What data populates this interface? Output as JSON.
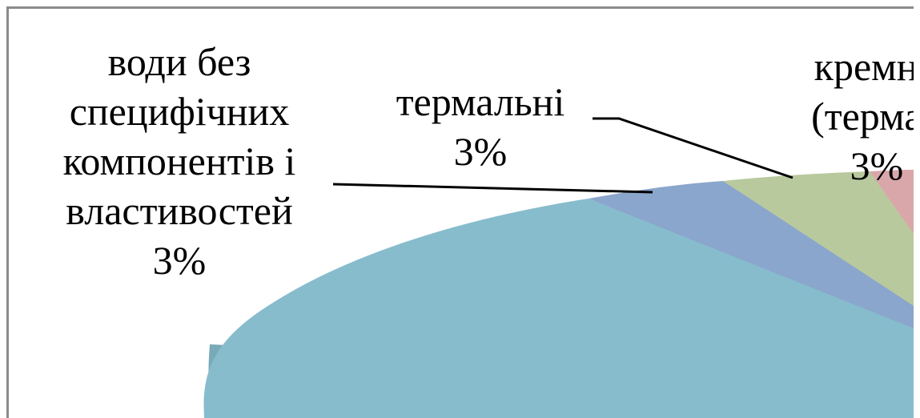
{
  "chart_data": {
    "type": "pie",
    "title": "",
    "slices": [
      {
        "label_lines": [
          "води без",
          "специфічних",
          "компонентів і",
          "властивостей"
        ],
        "percent_text": "3%",
        "value": 3,
        "color": "#8aa6cc"
      },
      {
        "label_lines": [
          "термальні"
        ],
        "percent_text": "3%",
        "value": 3,
        "color": "#b9c99e"
      },
      {
        "label_lines": [
          "кремни",
          "(термал"
        ],
        "percent_text": "3%",
        "value": 3,
        "color": "#d9a7aa"
      }
    ],
    "large_slice_color": "#87bccd",
    "style": "3d-perspective",
    "legend": "none"
  }
}
